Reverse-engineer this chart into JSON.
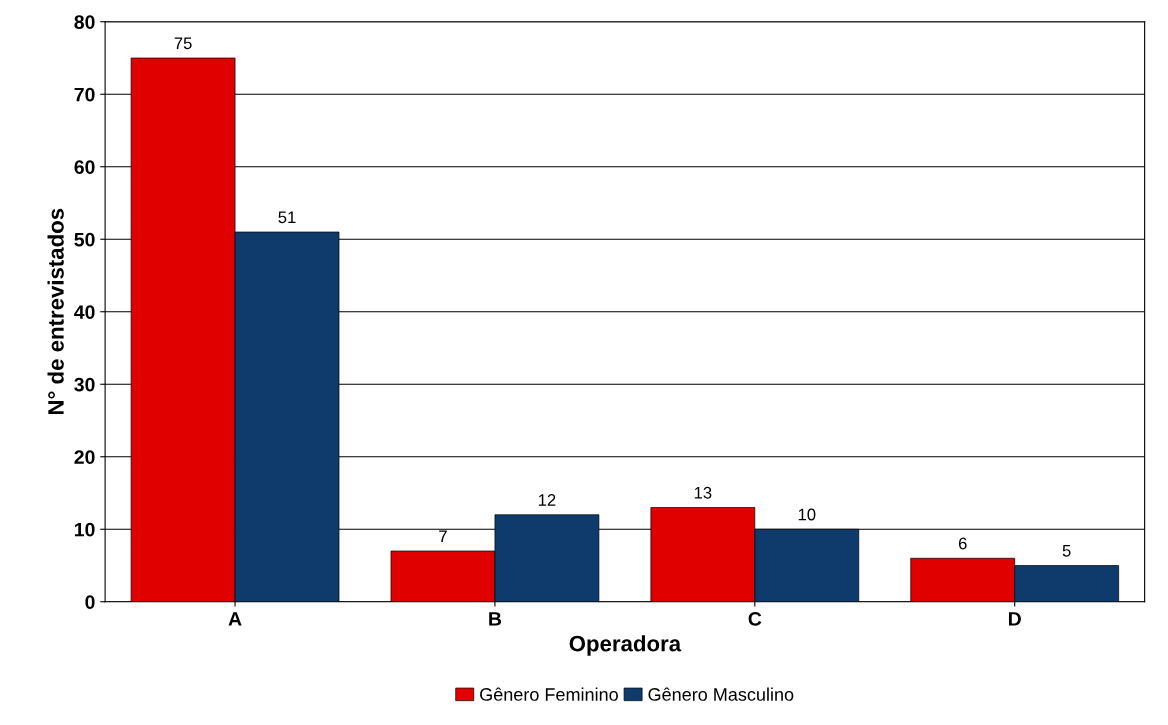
{
  "chart_data": {
    "type": "bar",
    "xlabel": "Operadora",
    "ylabel": "N° de entrevistados",
    "categories": [
      "A",
      "B",
      "C",
      "D"
    ],
    "series": [
      {
        "name": "Gênero Feminino",
        "color": "#e00000",
        "values": [
          75,
          7,
          13,
          6
        ]
      },
      {
        "name": "Gênero Masculino",
        "color": "#0e3a6c",
        "values": [
          51,
          12,
          10,
          5
        ]
      }
    ],
    "ylim": [
      0,
      80
    ],
    "yticks": [
      0,
      10,
      20,
      30,
      40,
      50,
      60,
      70,
      80
    ],
    "grid": "y",
    "legend": "bottom",
    "data_labels": true
  }
}
